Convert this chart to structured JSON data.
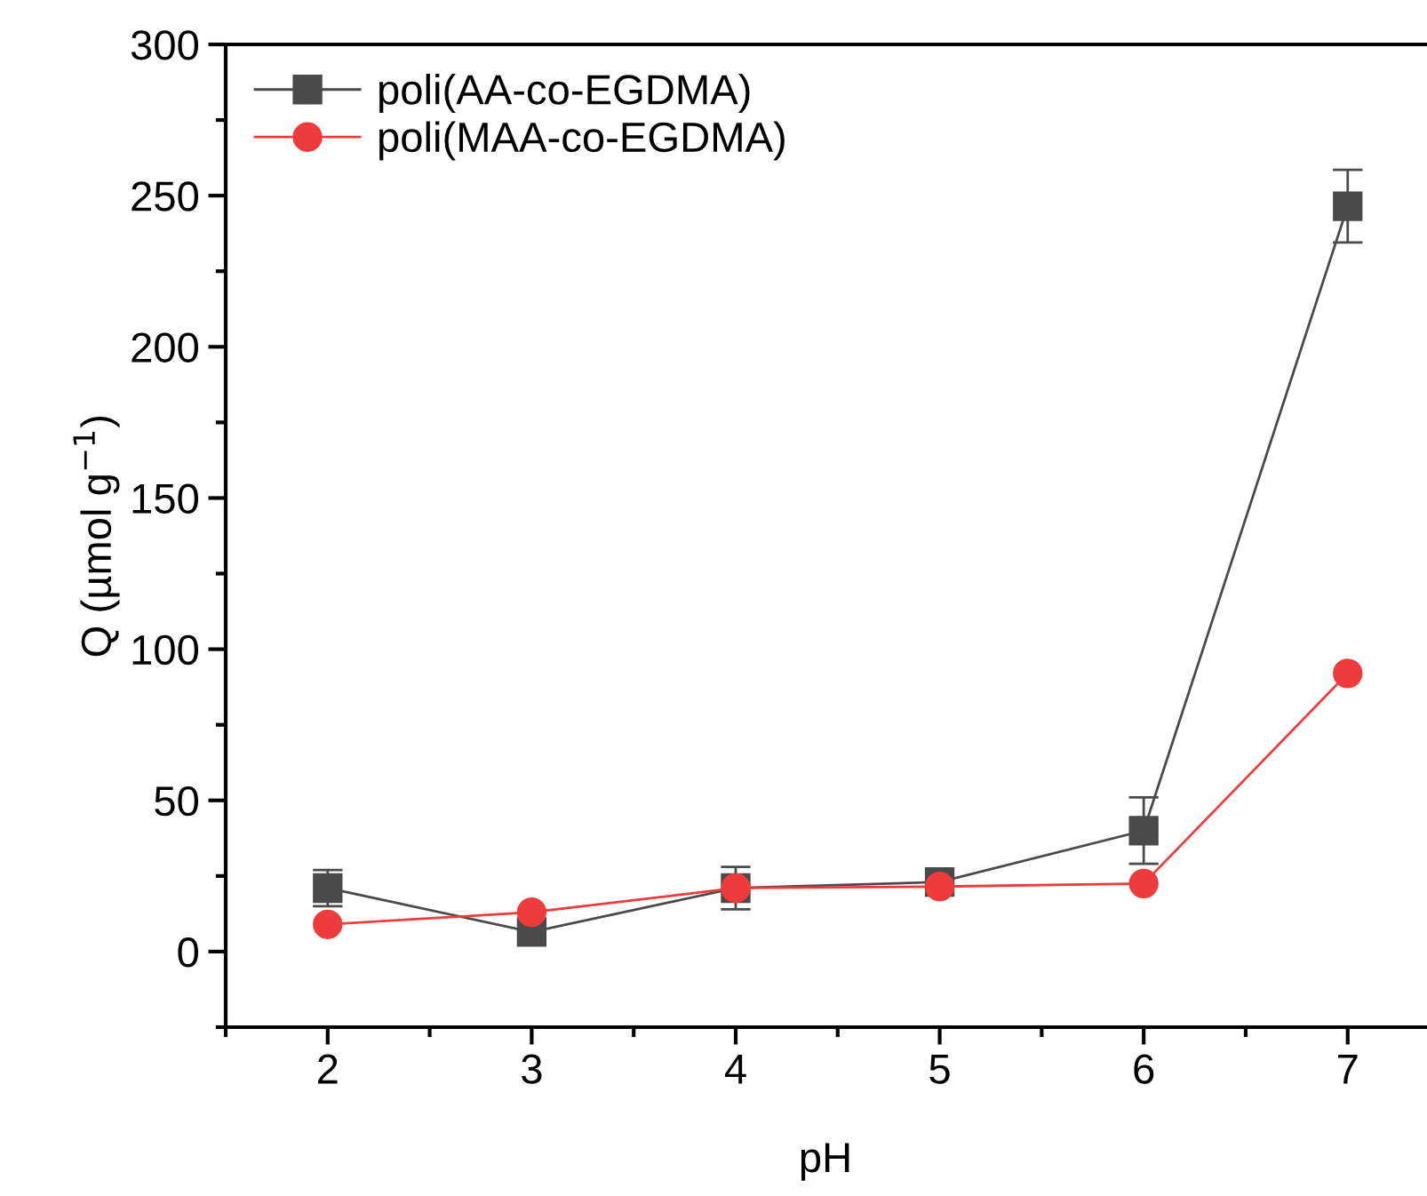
{
  "chart_data": {
    "type": "line",
    "xlabel": "pH",
    "ylabel": "Q (µmol g$^{−1}$)",
    "x": [
      2,
      3,
      4,
      5,
      6,
      7
    ],
    "series": [
      {
        "name": "poli(AA-co-EGDMA)",
        "color": "#4a4a4a",
        "marker": "square",
        "values": [
          21,
          6.5,
          21,
          23,
          40,
          246.5
        ],
        "errors": [
          6,
          null,
          7,
          null,
          11,
          12
        ]
      },
      {
        "name": "poli(MAA-co-EGDMA)",
        "color": "#ef3b3b",
        "marker": "circle",
        "values": [
          9,
          13,
          21,
          21.5,
          22.5,
          92
        ]
      }
    ],
    "xlim": [
      1.5,
      7.38
    ],
    "xticks": [
      2,
      3,
      4,
      5,
      6,
      7
    ],
    "ylim": [
      -25,
      300
    ],
    "yticks": [
      0,
      50,
      100,
      150,
      200,
      250,
      300
    ],
    "legend": "top left",
    "grid": false
  }
}
